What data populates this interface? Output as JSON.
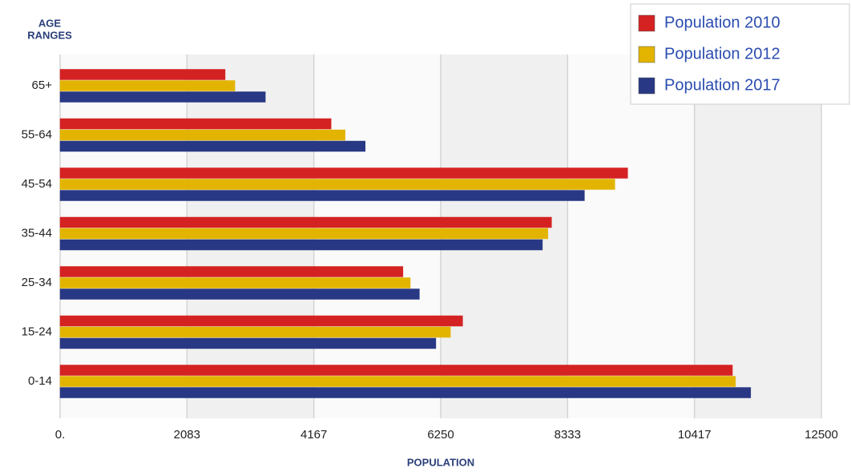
{
  "chart_data": {
    "type": "bar",
    "orientation": "horizontal",
    "y_label": [
      "AGE",
      "RANGES"
    ],
    "x_label": "POPULATION",
    "categories": [
      "65+",
      "55-64",
      "45-54",
      "35-44",
      "25-34",
      "15-24",
      "0-14"
    ],
    "series": [
      {
        "name": "Population 2010",
        "color": "#d42222",
        "values": [
          2710,
          4450,
          9320,
          8070,
          5630,
          6610,
          11040
        ]
      },
      {
        "name": "Population 2012",
        "color": "#e2b400",
        "values": [
          2870,
          4680,
          9110,
          8010,
          5750,
          6410,
          11090
        ]
      },
      {
        "name": "Population 2017",
        "color": "#283884",
        "values": [
          3370,
          5010,
          8610,
          7920,
          5900,
          6170,
          11340
        ]
      }
    ],
    "xlim": [
      0,
      12500
    ],
    "xticks": [
      {
        "value": 0,
        "label": "0."
      },
      2083,
      4167,
      6250,
      8333,
      10417,
      12500
    ],
    "grid": true,
    "legend": "top-right"
  }
}
